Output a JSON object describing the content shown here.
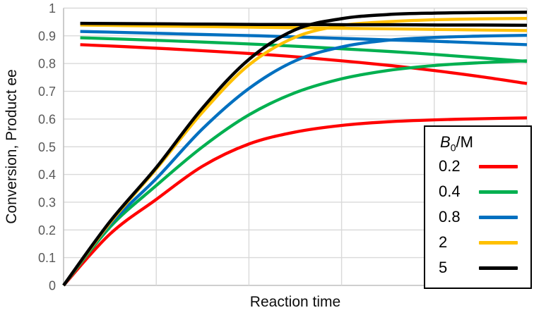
{
  "chart_data": {
    "type": "line",
    "title": "",
    "xlabel": "Reaction time",
    "ylabel": "Conversion, Product ee",
    "xlim": [
      0,
      5
    ],
    "ylim": [
      0,
      1
    ],
    "grid": "on",
    "x_tick_labels_shown": false,
    "x_gridline_positions": [
      1,
      2,
      3,
      4,
      5
    ],
    "y_ticks": [
      0,
      0.1,
      0.2,
      0.3,
      0.4,
      0.5,
      0.6,
      0.7,
      0.8,
      0.9,
      1
    ],
    "y_tick_labels": [
      "0",
      "0.1",
      "0.2",
      "0.3",
      "0.4",
      "0.5",
      "0.6",
      "0.7",
      "0.8",
      "0.9",
      "1"
    ],
    "legend": {
      "position": "lower right",
      "title_b": "B",
      "title_sub": "0",
      "title_suffix": "/M",
      "entries": [
        {
          "label": "0.2",
          "color": "#FF0000"
        },
        {
          "label": "0.4",
          "color": "#00B050"
        },
        {
          "label": "0.8",
          "color": "#0070C0"
        },
        {
          "label": "2",
          "color": "#FFC000"
        },
        {
          "label": "5",
          "color": "#000000"
        }
      ]
    },
    "series": [
      {
        "name": "ee B0=0.2",
        "group": "product ee",
        "b0": "0.2",
        "color": "#FF0000",
        "width": 4.3,
        "x": [
          0.18,
          0.66,
          1.14,
          1.62,
          2.11,
          2.59,
          3.07,
          3.55,
          4.04,
          4.52,
          5.0
        ],
        "y": [
          0.868,
          0.861,
          0.853,
          0.844,
          0.834,
          0.822,
          0.808,
          0.792,
          0.773,
          0.752,
          0.728
        ]
      },
      {
        "name": "conversion B0=0.2",
        "group": "conversion",
        "b0": "0.2",
        "color": "#FF0000",
        "width": 4.3,
        "x": [
          0,
          0.5,
          1,
          1.5,
          2,
          2.5,
          3,
          3.5,
          4,
          4.5,
          5
        ],
        "y": [
          0,
          0.185,
          0.31,
          0.43,
          0.51,
          0.553,
          0.577,
          0.59,
          0.597,
          0.601,
          0.604
        ]
      },
      {
        "name": "ee B0=0.4",
        "group": "product ee",
        "b0": "0.4",
        "color": "#00B050",
        "width": 4.3,
        "x": [
          0.18,
          0.66,
          1.14,
          1.62,
          2.11,
          2.59,
          3.07,
          3.55,
          4.04,
          4.52,
          5.0
        ],
        "y": [
          0.893,
          0.888,
          0.882,
          0.876,
          0.869,
          0.861,
          0.852,
          0.843,
          0.832,
          0.82,
          0.808
        ]
      },
      {
        "name": "conversion B0=0.4",
        "group": "conversion",
        "b0": "0.4",
        "color": "#00B050",
        "width": 4.3,
        "x": [
          0,
          0.5,
          1,
          1.5,
          2,
          2.5,
          3,
          3.5,
          4,
          4.5,
          5
        ],
        "y": [
          0,
          0.21,
          0.36,
          0.5,
          0.615,
          0.695,
          0.745,
          0.775,
          0.793,
          0.803,
          0.81
        ]
      },
      {
        "name": "ee B0=0.8",
        "group": "product ee",
        "b0": "0.8",
        "color": "#0070C0",
        "width": 4.3,
        "x": [
          0.18,
          0.66,
          1.14,
          1.62,
          2.11,
          2.59,
          3.07,
          3.55,
          4.04,
          4.52,
          5.0
        ],
        "y": [
          0.916,
          0.912,
          0.908,
          0.904,
          0.9,
          0.895,
          0.89,
          0.885,
          0.88,
          0.874,
          0.868
        ]
      },
      {
        "name": "conversion B0=0.8",
        "group": "conversion",
        "b0": "0.8",
        "color": "#0070C0",
        "width": 4.3,
        "x": [
          0,
          0.5,
          1,
          1.5,
          2,
          2.5,
          3,
          3.5,
          4,
          4.5,
          5
        ],
        "y": [
          0,
          0.22,
          0.385,
          0.565,
          0.71,
          0.81,
          0.86,
          0.884,
          0.894,
          0.899,
          0.902
        ]
      },
      {
        "name": "ee B0=2",
        "group": "product ee",
        "b0": "2",
        "color": "#FFC000",
        "width": 4.3,
        "x": [
          0.18,
          0.66,
          1.14,
          1.62,
          2.11,
          2.59,
          3.07,
          3.55,
          4.04,
          4.52,
          5.0
        ],
        "y": [
          0.939,
          0.937,
          0.935,
          0.933,
          0.931,
          0.929,
          0.927,
          0.925,
          0.923,
          0.921,
          0.919
        ]
      },
      {
        "name": "conversion B0=2",
        "group": "conversion",
        "b0": "2",
        "color": "#FFC000",
        "width": 4.3,
        "x": [
          0,
          0.5,
          1,
          1.5,
          2,
          2.5,
          3,
          3.5,
          4,
          4.5,
          5
        ],
        "y": [
          0,
          0.225,
          0.42,
          0.625,
          0.795,
          0.895,
          0.937,
          0.951,
          0.958,
          0.961,
          0.963
        ]
      },
      {
        "name": "ee B0=5",
        "group": "product ee",
        "b0": "5",
        "color": "#000000",
        "width": 4.5,
        "x": [
          0.18,
          0.66,
          1.14,
          1.62,
          2.11,
          2.59,
          3.07,
          3.55,
          4.04,
          4.52,
          5.0
        ],
        "y": [
          0.945,
          0.944,
          0.943,
          0.942,
          0.941,
          0.941,
          0.94,
          0.94,
          0.939,
          0.939,
          0.938
        ]
      },
      {
        "name": "conversion B0=5",
        "group": "conversion",
        "b0": "5",
        "color": "#000000",
        "width": 4.5,
        "x": [
          0,
          0.5,
          1,
          1.5,
          2,
          2.5,
          3,
          3.5,
          4,
          4.5,
          5
        ],
        "y": [
          0,
          0.23,
          0.425,
          0.64,
          0.815,
          0.922,
          0.962,
          0.977,
          0.982,
          0.984,
          0.985
        ]
      }
    ],
    "colors": {
      "gridline": "#D9D9D9",
      "axis_line": "#BFBFBF",
      "tick_label": "#595959",
      "axis_title": "#0d0d0d",
      "legend_border": "#000000",
      "background": "#FFFFFF"
    }
  }
}
